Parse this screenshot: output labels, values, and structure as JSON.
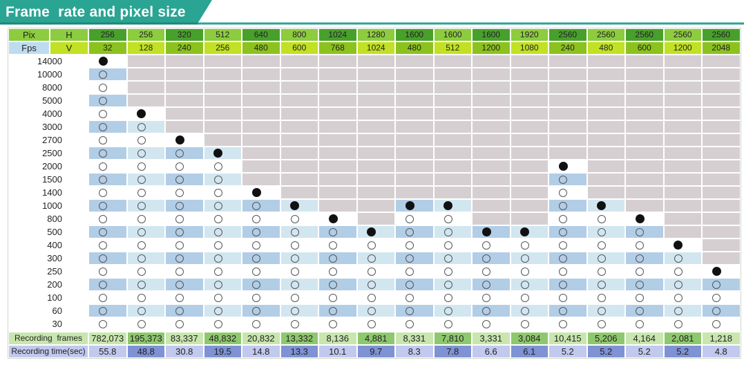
{
  "title": "Frame  rate and pixel size",
  "colors": {
    "header_teal": "#2aa493",
    "header_dark": "#1a8774",
    "green_light": "#8ccc3e",
    "green_dark": "#48a02c",
    "yellow_light": "#c2e024",
    "yellow_dark": "#8cc21e",
    "fps_cell": "#bedcf0",
    "row_blue": "#b2cde6",
    "row_light": "#d2e6f0",
    "gray": "#d6cfd1",
    "rec_green_light": "#c8e6ae",
    "rec_green_dark": "#8ec86e",
    "rec_blue_light": "#c2c9ee",
    "rec_blue_dark": "#7e92d4"
  },
  "table": {
    "pix_label": "Pix",
    "h_label": "H",
    "fps_label": "Fps",
    "v_label": "V",
    "h_values": [
      "256",
      "256",
      "320",
      "512",
      "640",
      "800",
      "1024",
      "1280",
      "1600",
      "1600",
      "1600",
      "1920",
      "2560",
      "2560",
      "2560",
      "2560",
      "2560"
    ],
    "v_values": [
      "32",
      "128",
      "240",
      "256",
      "480",
      "600",
      "768",
      "1024",
      "480",
      "512",
      "1200",
      "1080",
      "240",
      "480",
      "600",
      "1200",
      "2048"
    ],
    "fps_values": [
      "14000",
      "10000",
      "8000",
      "5000",
      "4000",
      "3000",
      "2700",
      "2500",
      "2000",
      "1500",
      "1400",
      "1000",
      "800",
      "500",
      "400",
      "300",
      "250",
      "200",
      "100",
      "60",
      "30"
    ],
    "max_fps_index": [
      0,
      4,
      6,
      7,
      10,
      11,
      12,
      13,
      11,
      11,
      13,
      13,
      8,
      11,
      12,
      14,
      16
    ],
    "recording_frames_label": "Recording  frames",
    "recording_time_label": "Recording time(sec)",
    "recording_frames": [
      "782,073",
      "195,373",
      "83,337",
      "48,832",
      "20,832",
      "13,332",
      "8,136",
      "4,881",
      "8,331",
      "7,810",
      "3,331",
      "3,084",
      "10,415",
      "5,206",
      "4,164",
      "2,081",
      "1,218"
    ],
    "recording_time": [
      "55.8",
      "48.8",
      "30.8",
      "19.5",
      "14.8",
      "13.3",
      "10.1",
      "9.7",
      "8.3",
      "7.8",
      "6.6",
      "6.1",
      "5.2",
      "5.2",
      "5.2",
      "5.2",
      "4.8"
    ]
  }
}
